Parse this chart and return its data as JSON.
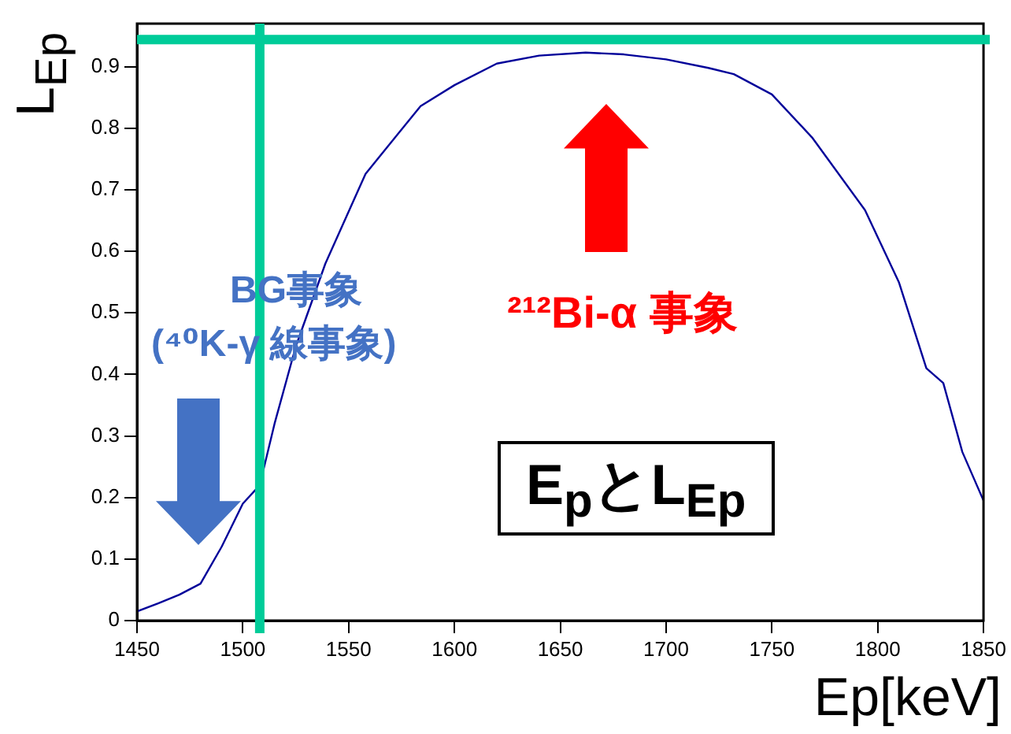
{
  "chart_data": {
    "type": "line",
    "xlabel": "Ep[keV]",
    "ylabel": "L$_{Ep}$",
    "x": [
      1450,
      1460,
      1470,
      1480,
      1490,
      1500,
      1508,
      1515,
      1525,
      1539,
      1558,
      1584,
      1600,
      1620,
      1640,
      1662,
      1680,
      1700,
      1720,
      1732,
      1750,
      1769,
      1794,
      1810,
      1823,
      1831,
      1840,
      1850
    ],
    "series": [
      {
        "color": "#000099",
        "values": [
          0.015,
          0.028,
          0.042,
          0.06,
          0.12,
          0.19,
          0.22,
          0.32,
          0.445,
          0.58,
          0.726,
          0.836,
          0.87,
          0.905,
          0.918,
          0.923,
          0.92,
          0.912,
          0.898,
          0.888,
          0.855,
          0.785,
          0.667,
          0.55,
          0.41,
          0.386,
          0.274,
          0.195
        ]
      }
    ],
    "xlim": [
      1450,
      1850
    ],
    "xticks": [
      1450,
      1500,
      1550,
      1600,
      1650,
      1700,
      1750,
      1800,
      1850
    ],
    "ylim": [
      0,
      0.97
    ],
    "yticks": [
      0,
      0.1,
      0.2,
      0.3,
      0.4,
      0.5,
      0.6,
      0.7,
      0.8,
      0.9
    ],
    "grid": false,
    "marker": "none",
    "line_style": "solid",
    "ref_lines": [
      {
        "axis": "x",
        "value": 1508,
        "color": "#00cc99"
      },
      {
        "axis": "y",
        "value": 0.944,
        "color": "#00cc99"
      }
    ],
    "annotations": [
      "BG事象",
      "(⁴⁰K-γ 線事象)",
      "²¹²Bi-α 事象",
      "E$_{p}$とL$_{Ep}$"
    ]
  }
}
